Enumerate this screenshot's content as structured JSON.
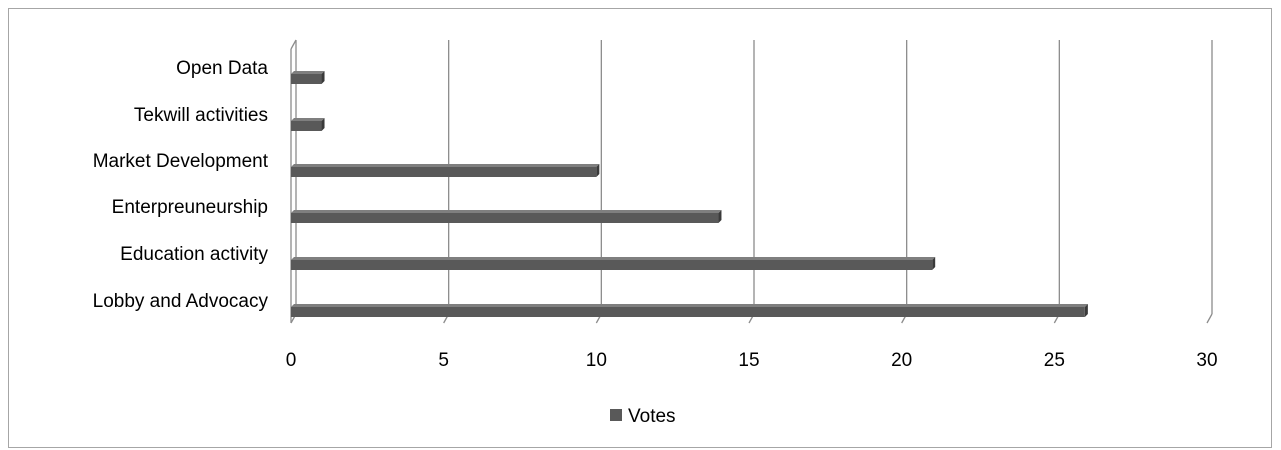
{
  "chart_data": {
    "type": "bar",
    "orientation": "horizontal",
    "style": "3d",
    "categories": [
      "Open Data",
      "Tekwill activities",
      "Market Development",
      "Enterpreuneurship",
      "Education activity",
      "Lobby and Advocacy"
    ],
    "series": [
      {
        "name": "Votes",
        "values": [
          1,
          1,
          10,
          14,
          21,
          26
        ]
      }
    ],
    "xlim": [
      0,
      30
    ],
    "x_ticks": [
      "0",
      "5",
      "10",
      "15",
      "20",
      "25",
      "30"
    ],
    "grid": "vertical",
    "legend_position": "bottom",
    "colors": {
      "bar": "#595959",
      "bar_top": "#7f7f7f",
      "bar_side": "#3a3a3a",
      "grid": "#8c8c8c"
    }
  }
}
